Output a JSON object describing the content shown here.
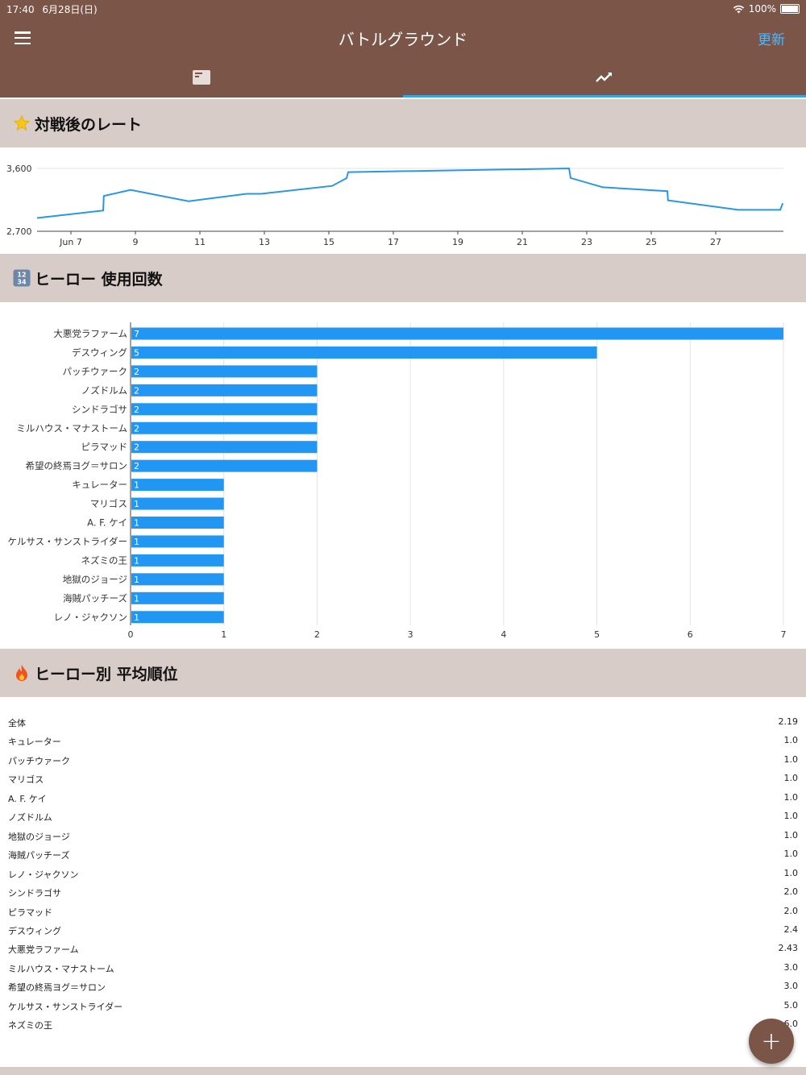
{
  "status_bar": {
    "time": "17:40",
    "date": "6月28日(日)",
    "battery": "100%"
  },
  "header": {
    "title": "バトルグラウンド",
    "refresh_label": "更新"
  },
  "tabs": [
    {
      "icon": "card-icon",
      "active": false
    },
    {
      "icon": "trending-icon",
      "active": true
    }
  ],
  "sections": {
    "rating": {
      "title": "対戦後のレート",
      "emoji": "star"
    },
    "usage": {
      "title": "ヒーロー 使用回数",
      "emoji": "numbers"
    },
    "average": {
      "title": "ヒーロー別 平均順位",
      "emoji": "fire"
    }
  },
  "colors": {
    "header": "#7a5548",
    "section": "#d8ccc8",
    "accent": "#2196f3",
    "refresh": "#4fb7ff"
  },
  "chart_data": [
    {
      "type": "line",
      "title": "",
      "y_ticks": [
        "3,600",
        "2,700"
      ],
      "ylim": [
        2700,
        3600
      ],
      "x_ticks": [
        "Jun 7",
        "9",
        "11",
        "13",
        "15",
        "17",
        "19",
        "21",
        "23",
        "25",
        "27"
      ],
      "x_tick_values": [
        7,
        9,
        11,
        13,
        15,
        17,
        19,
        21,
        23,
        25,
        27
      ],
      "xlim": [
        5.95,
        29.1
      ],
      "series": [
        {
          "x": [
            5.95,
            8.0,
            8.02,
            8.85,
            10.65,
            12.45,
            12.9,
            15.1,
            15.55,
            15.6,
            22.45,
            22.5,
            23.5,
            25.5,
            25.52,
            27.7,
            29.0,
            29.08
          ],
          "y": [
            2890,
            2998,
            3205,
            3293,
            3130,
            3237,
            3237,
            3350,
            3460,
            3547,
            3600,
            3463,
            3330,
            3275,
            3143,
            3007,
            3007,
            3100
          ]
        }
      ],
      "grid": true
    },
    {
      "type": "bar",
      "orientation": "horizontal",
      "categories": [
        "大悪党ラファーム",
        "デスウィング",
        "パッチウァーク",
        "ノズドルム",
        "シンドラゴサ",
        "ミルハウス・マナストーム",
        "ピラマッド",
        "希望の終焉ヨグ＝サロン",
        "キュレーター",
        "マリゴス",
        "A. F. ケイ",
        "ケルサス・サンストライダー",
        "ネズミの王",
        "地獄のジョージ",
        "海賊パッチーズ",
        "レノ・ジャクソン"
      ],
      "values": [
        7,
        5,
        2,
        2,
        2,
        2,
        2,
        2,
        1,
        1,
        1,
        1,
        1,
        1,
        1,
        1
      ],
      "x_ticks": [
        "0",
        "1",
        "2",
        "3",
        "4",
        "5",
        "6",
        "7"
      ],
      "xlim": [
        0,
        7
      ],
      "grid": true
    }
  ],
  "average_rank": [
    {
      "name": "全体",
      "value": "2.19"
    },
    {
      "name": "キュレーター",
      "value": "1.0"
    },
    {
      "name": "パッチウァーク",
      "value": "1.0"
    },
    {
      "name": "マリゴス",
      "value": "1.0"
    },
    {
      "name": "A. F. ケイ",
      "value": "1.0"
    },
    {
      "name": "ノズドルム",
      "value": "1.0"
    },
    {
      "name": "地獄のジョージ",
      "value": "1.0"
    },
    {
      "name": "海賊パッチーズ",
      "value": "1.0"
    },
    {
      "name": "レノ・ジャクソン",
      "value": "1.0"
    },
    {
      "name": "シンドラゴサ",
      "value": "2.0"
    },
    {
      "name": "ピラマッド",
      "value": "2.0"
    },
    {
      "name": "デスウィング",
      "value": "2.4"
    },
    {
      "name": "大悪党ラファーム",
      "value": "2.43"
    },
    {
      "name": "ミルハウス・マナストーム",
      "value": "3.0"
    },
    {
      "name": "希望の終焉ヨグ＝サロン",
      "value": "3.0"
    },
    {
      "name": "ケルサス・サンストライダー",
      "value": "5.0"
    },
    {
      "name": "ネズミの王",
      "value": "6.0"
    }
  ],
  "fab": {
    "label": "+",
    "icon": "plus-icon"
  }
}
